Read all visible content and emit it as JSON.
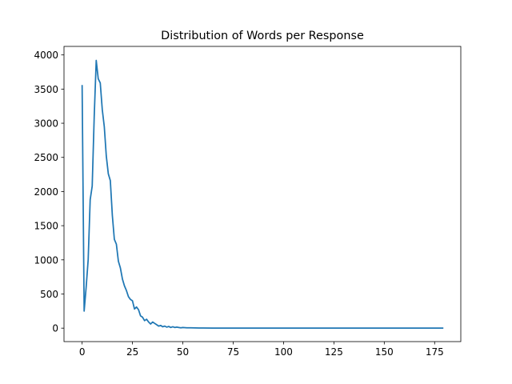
{
  "chart_data": {
    "type": "line",
    "title": "Distribution of Words per Response",
    "xlabel": "",
    "ylabel": "",
    "xlim": [
      -9,
      188
    ],
    "ylim": [
      -197,
      4125
    ],
    "xticks": [
      0,
      25,
      50,
      75,
      100,
      125,
      150,
      175
    ],
    "yticks": [
      0,
      500,
      1000,
      1500,
      2000,
      2500,
      3000,
      3500,
      4000
    ],
    "grid": false,
    "legend": "none",
    "series": [
      {
        "color": "#1f77b4",
        "x": [
          0,
          1,
          2,
          3,
          4,
          5,
          6,
          7,
          8,
          9,
          10,
          11,
          12,
          13,
          14,
          15,
          16,
          17,
          18,
          19,
          20,
          21,
          22,
          23,
          24,
          25,
          26,
          27,
          28,
          29,
          30,
          31,
          32,
          33,
          34,
          35,
          36,
          37,
          38,
          39,
          40,
          41,
          42,
          43,
          44,
          45,
          46,
          47,
          48,
          49,
          50,
          52,
          54,
          56,
          58,
          60,
          65,
          70,
          75,
          80,
          90,
          100,
          110,
          120,
          130,
          140,
          150,
          160,
          170,
          179
        ],
        "y": [
          3550,
          250,
          600,
          1000,
          1880,
          2080,
          3100,
          3920,
          3650,
          3590,
          3200,
          2950,
          2520,
          2260,
          2160,
          1650,
          1300,
          1230,
          980,
          880,
          720,
          620,
          550,
          460,
          420,
          400,
          280,
          310,
          270,
          180,
          160,
          110,
          130,
          90,
          60,
          90,
          70,
          50,
          30,
          40,
          20,
          30,
          15,
          25,
          10,
          20,
          10,
          15,
          10,
          5,
          10,
          5,
          5,
          3,
          2,
          2,
          1,
          1,
          1,
          0,
          0,
          0,
          0,
          0,
          0,
          0,
          0,
          0,
          0,
          0
        ]
      }
    ]
  }
}
